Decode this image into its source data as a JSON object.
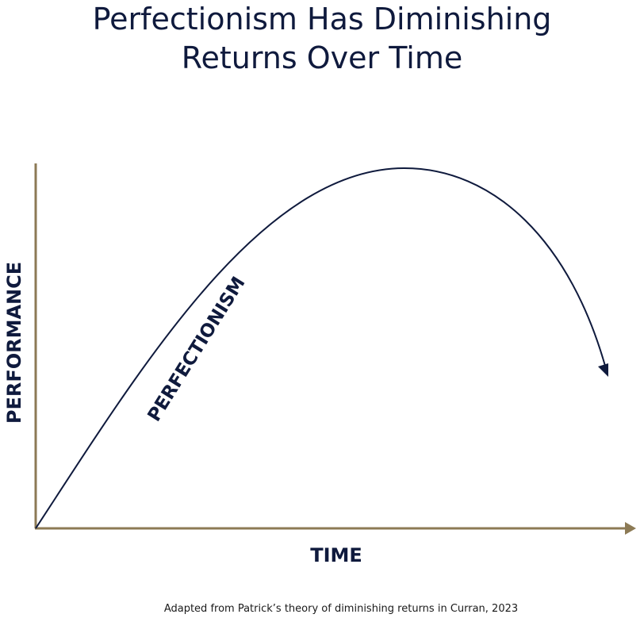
{
  "title": {
    "line1": "Perfectionism Has Diminishing",
    "line2": "Returns Over Time"
  },
  "axes": {
    "x_label": "TIME",
    "y_label": "PERFORMANCE"
  },
  "curve": {
    "label": "PERFECTIONISM"
  },
  "caption": "Adapted from Patrick’s theory of diminishing returns in Curran, 2023",
  "colors": {
    "text": "#0f1a3d",
    "axis": "#8c7a55",
    "curve": "#0f1a3d"
  }
}
